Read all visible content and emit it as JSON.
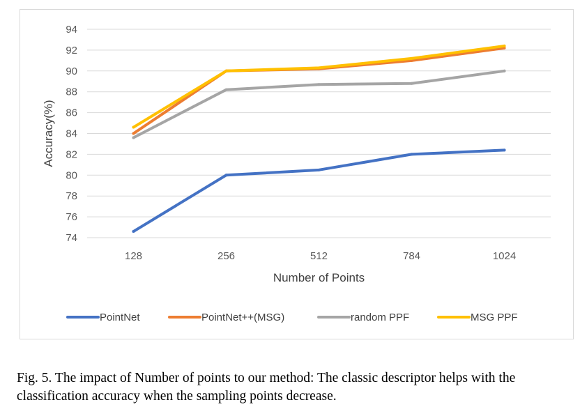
{
  "chart_data": {
    "type": "line",
    "categories": [
      "128",
      "256",
      "512",
      "784",
      "1024"
    ],
    "series": [
      {
        "name": "PointNet",
        "color": "#4472C4",
        "values": [
          74.6,
          80.0,
          80.5,
          82.0,
          82.4
        ]
      },
      {
        "name": "PointNet++(MSG)",
        "color": "#ED7D31",
        "values": [
          84.0,
          90.0,
          90.2,
          91.0,
          92.2
        ]
      },
      {
        "name": "random PPF",
        "color": "#A5A5A5",
        "values": [
          83.6,
          88.2,
          88.7,
          88.8,
          90.0
        ]
      },
      {
        "name": "MSG PPF",
        "color": "#FFC000",
        "values": [
          84.6,
          90.0,
          90.3,
          91.2,
          92.4
        ]
      }
    ],
    "ylim": [
      74,
      94
    ],
    "yticks": [
      74,
      76,
      78,
      80,
      82,
      84,
      86,
      88,
      90,
      92,
      94
    ],
    "xlabel": "Number of Points",
    "ylabel": "Accuracy(%)",
    "grid": true,
    "legend_position": "bottom"
  },
  "caption": "Fig. 5.  The impact of Number of points to our method: The classic descriptor helps with the classification accuracy when the sampling points decrease."
}
